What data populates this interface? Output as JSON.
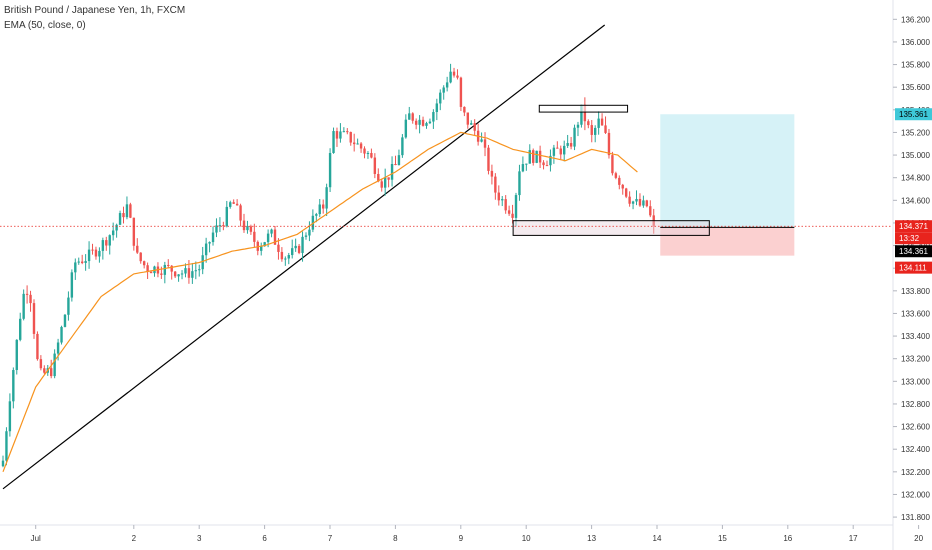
{
  "legend": {
    "symbol": "British Pound / Japanese Yen, 1h, FXCM",
    "indicator": "EMA (50, close, 0)"
  },
  "colors": {
    "up": "#26a69a",
    "down": "#ef5350",
    "ema": "#f7931e",
    "profit_zone": "#d6f2f7",
    "loss_zone": "#fbd0d0",
    "profit_badge": "#3ec8d8",
    "loss_badge": "#e8241d",
    "level_line": "#e8241d",
    "trendline": "#000000"
  },
  "chart_data": {
    "type": "candlestick",
    "ylim": [
      131.73,
      136.3
    ],
    "y_ticks": [
      "136.200",
      "136.000",
      "135.800",
      "135.600",
      "135.400",
      "135.200",
      "135.000",
      "134.800",
      "134.600",
      "134.400",
      "134.200",
      "134.000",
      "133.800",
      "133.600",
      "133.400",
      "133.200",
      "133.000",
      "132.800",
      "132.600",
      "132.400",
      "132.200",
      "132.000",
      "131.800"
    ],
    "x_ticks": [
      {
        "label": "Jul",
        "day": 0.5
      },
      {
        "label": "2",
        "day": 2
      },
      {
        "label": "3",
        "day": 3
      },
      {
        "label": "6",
        "day": 4
      },
      {
        "label": "7",
        "day": 5
      },
      {
        "label": "8",
        "day": 6
      },
      {
        "label": "9",
        "day": 7
      },
      {
        "label": "10",
        "day": 8
      },
      {
        "label": "13",
        "day": 9
      },
      {
        "label": "14",
        "day": 10
      },
      {
        "label": "15",
        "day": 11
      },
      {
        "label": "16",
        "day": 12
      },
      {
        "label": "17",
        "day": 13
      },
      {
        "label": "20",
        "day": 14
      }
    ],
    "close_anchors": [
      [
        0.0,
        132.3
      ],
      [
        0.1,
        132.85
      ],
      [
        0.2,
        133.3
      ],
      [
        0.3,
        133.75
      ],
      [
        0.4,
        133.85
      ],
      [
        0.55,
        133.05
      ],
      [
        0.75,
        133.1
      ],
      [
        0.95,
        133.6
      ],
      [
        1.1,
        134.05
      ],
      [
        1.3,
        134.1
      ],
      [
        1.5,
        134.2
      ],
      [
        1.7,
        134.35
      ],
      [
        1.9,
        134.55
      ],
      [
        2.05,
        134.1
      ],
      [
        2.2,
        134.0
      ],
      [
        2.5,
        134.0
      ],
      [
        2.8,
        133.95
      ],
      [
        3.0,
        134.0
      ],
      [
        3.2,
        134.3
      ],
      [
        3.4,
        134.45
      ],
      [
        3.5,
        134.6
      ],
      [
        3.7,
        134.35
      ],
      [
        3.9,
        134.2
      ],
      [
        4.1,
        134.3
      ],
      [
        4.3,
        134.1
      ],
      [
        4.5,
        134.15
      ],
      [
        4.7,
        134.4
      ],
      [
        4.9,
        134.55
      ],
      [
        5.05,
        135.2
      ],
      [
        5.3,
        135.15
      ],
      [
        5.6,
        135.0
      ],
      [
        5.8,
        134.75
      ],
      [
        6.0,
        134.9
      ],
      [
        6.2,
        135.35
      ],
      [
        6.4,
        135.3
      ],
      [
        6.55,
        135.35
      ],
      [
        6.7,
        135.55
      ],
      [
        6.85,
        135.75
      ],
      [
        6.95,
        135.65
      ],
      [
        7.0,
        135.4
      ],
      [
        7.1,
        135.3
      ],
      [
        7.3,
        135.15
      ],
      [
        7.4,
        134.95
      ],
      [
        7.5,
        134.7
      ],
      [
        7.7,
        134.55
      ],
      [
        7.8,
        134.5
      ],
      [
        7.9,
        134.9
      ],
      [
        8.05,
        135.0
      ],
      [
        8.3,
        134.95
      ],
      [
        8.5,
        135.05
      ],
      [
        8.65,
        135.05
      ],
      [
        8.85,
        135.4
      ],
      [
        9.0,
        135.15
      ],
      [
        9.1,
        135.3
      ],
      [
        9.2,
        135.2
      ],
      [
        9.3,
        134.9
      ],
      [
        9.45,
        134.75
      ],
      [
        9.6,
        134.6
      ],
      [
        9.75,
        134.55
      ],
      [
        9.85,
        134.55
      ],
      [
        9.95,
        134.34
      ]
    ],
    "ema_anchors": [
      [
        0.0,
        132.2
      ],
      [
        0.5,
        132.95
      ],
      [
        1.0,
        133.35
      ],
      [
        1.5,
        133.75
      ],
      [
        2.0,
        133.95
      ],
      [
        2.5,
        134.0
      ],
      [
        3.0,
        134.05
      ],
      [
        3.5,
        134.15
      ],
      [
        4.0,
        134.2
      ],
      [
        4.5,
        134.3
      ],
      [
        5.0,
        134.5
      ],
      [
        5.5,
        134.7
      ],
      [
        6.0,
        134.85
      ],
      [
        6.5,
        135.05
      ],
      [
        7.0,
        135.2
      ],
      [
        7.4,
        135.15
      ],
      [
        7.8,
        135.05
      ],
      [
        8.2,
        135.0
      ],
      [
        8.6,
        134.95
      ],
      [
        9.0,
        135.05
      ],
      [
        9.4,
        135.0
      ],
      [
        9.7,
        134.85
      ]
    ],
    "trendline": {
      "start": [
        0.0,
        132.05
      ],
      "end": [
        9.2,
        136.15
      ]
    },
    "resistance_box": {
      "day_from": 8.2,
      "day_to": 9.55,
      "price_low": 135.38,
      "price_high": 135.44
    },
    "support_box": {
      "day_from": 7.8,
      "day_to": 10.8,
      "price_low": 134.29,
      "price_high": 134.42
    },
    "position": {
      "day_from": 10.05,
      "day_to": 12.1,
      "entry": 134.361,
      "target": 135.361,
      "stop": 134.111
    },
    "price_labels": {
      "target": "135.361",
      "ref_level": "134.371",
      "timer": "13:32",
      "last": "134.361",
      "stop": "134.111"
    },
    "ref_level_value": 134.371
  }
}
